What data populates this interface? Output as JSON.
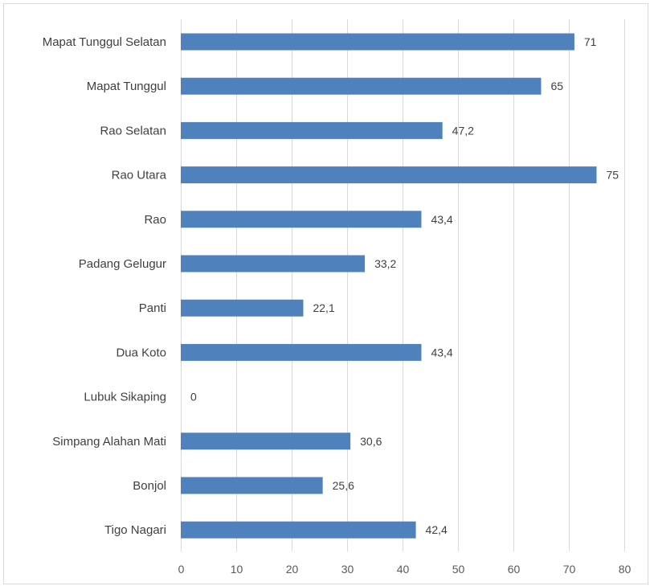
{
  "chart_data": {
    "type": "bar",
    "orientation": "horizontal",
    "categories": [
      "Mapat Tunggul Selatan",
      "Mapat Tunggul",
      "Rao Selatan",
      "Rao Utara",
      "Rao",
      "Padang Gelugur",
      "Panti",
      "Dua Koto",
      "Lubuk Sikaping",
      "Simpang Alahan Mati",
      "Bonjol",
      "Tigo Nagari"
    ],
    "values": [
      71,
      65,
      47.2,
      75,
      43.4,
      33.2,
      22.1,
      43.4,
      0,
      30.6,
      25.6,
      42.4
    ],
    "data_labels": [
      "71",
      "65",
      "47,2",
      "75",
      "43,4",
      "33,2",
      "22,1",
      "43,4",
      "0",
      "30,6",
      "25,6",
      "42,4"
    ],
    "x_ticks": [
      "0",
      "10",
      "20",
      "30",
      "40",
      "50",
      "60",
      "70",
      "80"
    ],
    "xlim": [
      0,
      80
    ],
    "title": "",
    "xlabel": "",
    "ylabel": "",
    "grid": "vertical",
    "legend": "none",
    "colors": {
      "bar": "#4f81bd",
      "grid": "#d9d9d9",
      "text": "#404040"
    }
  }
}
